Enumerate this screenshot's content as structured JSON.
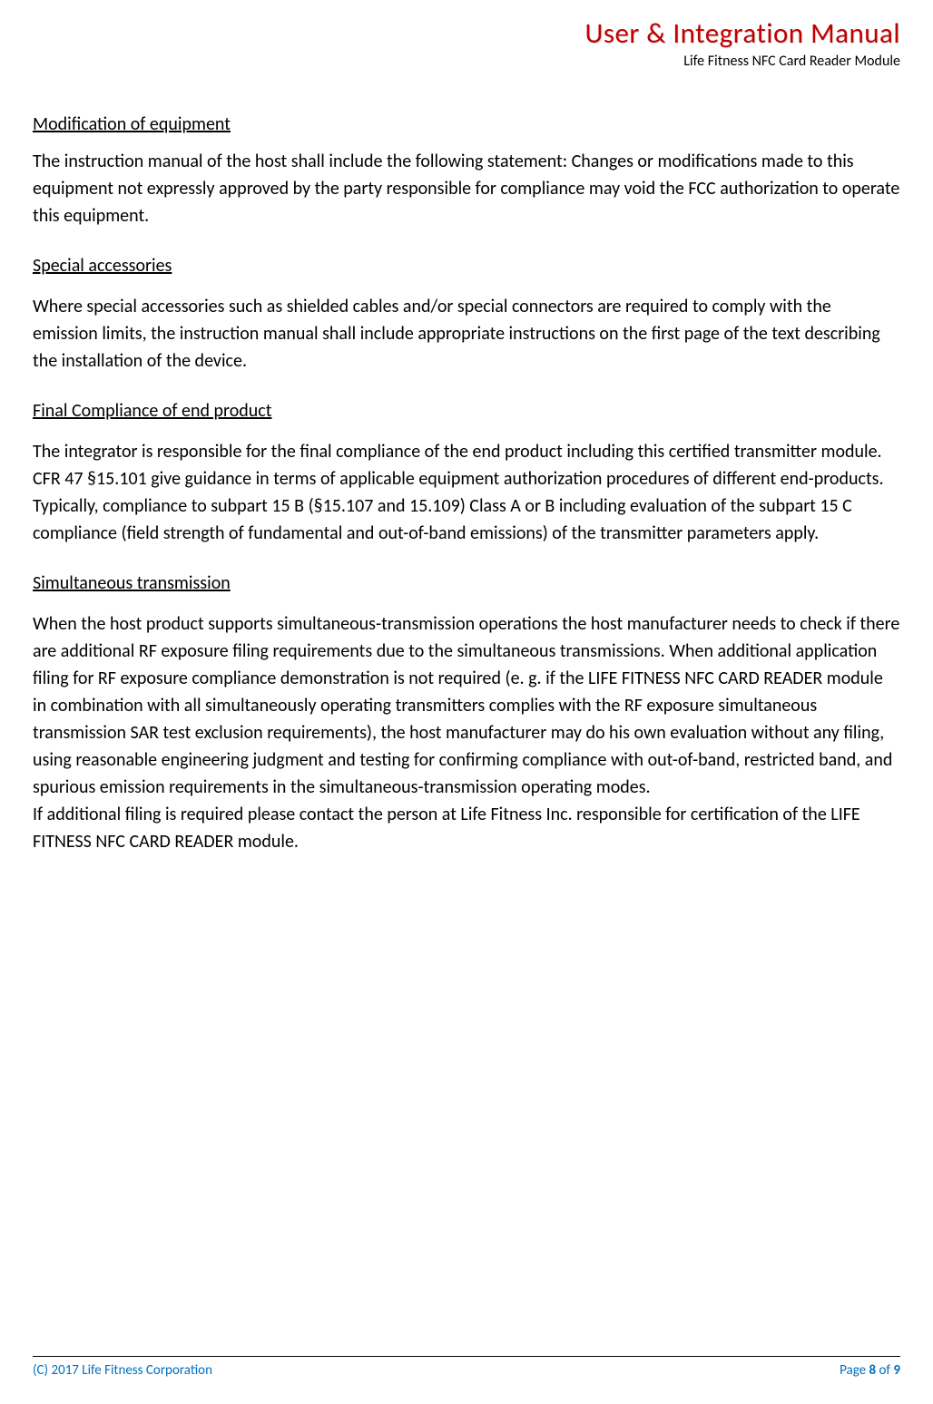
{
  "header": {
    "title": "User & Integration Manual",
    "subtitle": "Life Fitness NFC Card Reader Module"
  },
  "sections": [
    {
      "heading": "Modification of equipment",
      "body": "The instruction manual of the host shall include the following statement: Changes or modifications made to this equipment not expressly approved by the party responsible for compliance may void the FCC authorization to operate this equipment."
    },
    {
      "heading": "Special accessories",
      "body": "Where special accessories such as shielded cables and/or special connectors are required to comply with the emission limits, the instruction manual shall include appropriate instructions on the first page of the text describing the installation of the device."
    },
    {
      "heading": "Final Compliance of end product",
      "body": "The integrator is responsible for the final compliance of the end product including this certified transmitter module. CFR 47 §15.101 give guidance in terms of applicable equipment authorization procedures of different end-products. Typically, compliance to subpart 15 B (§15.107 and 15.109) Class A or B including evaluation of the subpart 15 C compliance (field strength of fundamental and out-of-band emissions) of the transmitter parameters apply."
    },
    {
      "heading": "Simultaneous transmission",
      "body": "When the host product supports simultaneous-transmission operations the host manufacturer needs to check if there are additional RF exposure filing requirements due to the simultaneous transmissions. When additional application filing for RF exposure compliance demonstration is not required (e. g. if the LIFE FITNESS NFC CARD READER module in combination with all simultaneously operating transmitters complies with the RF exposure simultaneous transmission SAR test exclusion requirements), the host manufacturer may do his own evaluation without any filing, using reasonable engineering judgment and testing for confirming compliance with out-of-band, restricted band, and spurious emission requirements in the simultaneous-transmission operating modes.\nIf additional filing is required please contact the person at Life Fitness Inc. responsible for certification of the LIFE FITNESS NFC CARD READER module."
    }
  ],
  "footer": {
    "copyright": "(C) 2017 Life Fitness Corporation",
    "page_label": "Page ",
    "page_current": "8",
    "page_of": " of ",
    "page_total": "9"
  }
}
